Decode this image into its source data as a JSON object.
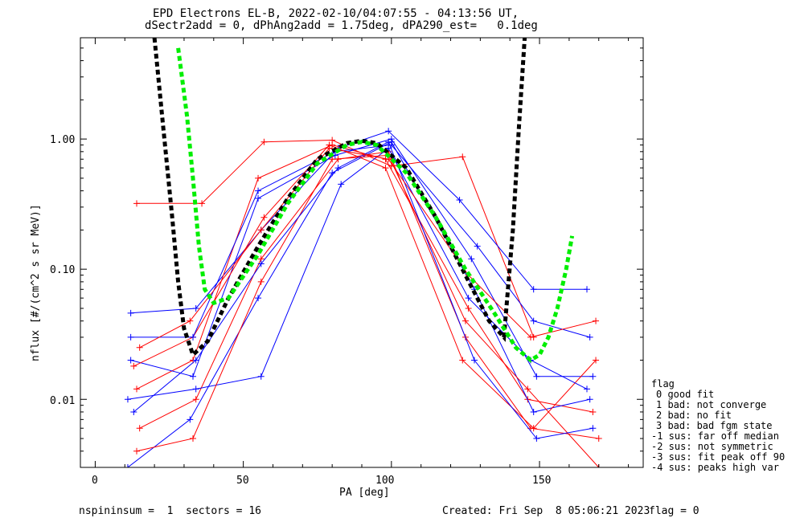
{
  "chart_data": {
    "type": "line",
    "title": "EPD Electrons EL-B, 2022-02-10/04:07:55 - 04:13:56 UT,",
    "subtitle": "dSectr2add = 0, dPhAng2add = 1.75deg, dPA290_est=   0.1deg",
    "xlabel": "PA [deg]",
    "ylabel": "nflux [#/(cm^2 s sr MeV)]",
    "xlim": [
      -5,
      185
    ],
    "ylim": [
      0.003,
      6.0
    ],
    "yscale": "log",
    "x_ticks": [
      0,
      50,
      100,
      150
    ],
    "y_ticks": [
      0.01,
      0.1,
      1.0
    ],
    "y_tick_labels": [
      "0.01",
      "0.10",
      "1.00"
    ],
    "series": [
      {
        "color": "#ff0000",
        "x": [
          14,
          36,
          57,
          80,
          100,
          124,
          148
        ],
        "y": [
          0.32,
          0.32,
          0.95,
          0.98,
          0.62,
          0.73,
          0.03
        ]
      },
      {
        "color": "#0000ff",
        "x": [
          12,
          34,
          56,
          82,
          99,
          123,
          148,
          166
        ],
        "y": [
          0.046,
          0.05,
          0.2,
          0.85,
          1.15,
          0.34,
          0.07,
          0.07
        ]
      },
      {
        "color": "#ff0000",
        "x": [
          14,
          33,
          55,
          80,
          98,
          126,
          146,
          168
        ],
        "y": [
          0.012,
          0.02,
          0.5,
          0.9,
          0.7,
          0.05,
          0.01,
          0.008
        ]
      },
      {
        "color": "#0000ff",
        "x": [
          11,
          32,
          55,
          80,
          100,
          128,
          148,
          167
        ],
        "y": [
          0.003,
          0.007,
          0.06,
          0.55,
          0.95,
          0.07,
          0.008,
          0.01
        ]
      },
      {
        "color": "#ff0000",
        "x": [
          15,
          34,
          56,
          82,
          99,
          125,
          147,
          170
        ],
        "y": [
          0.006,
          0.01,
          0.12,
          0.7,
          0.8,
          0.03,
          0.006,
          0.005
        ]
      },
      {
        "color": "#0000ff",
        "x": [
          12,
          33,
          55,
          81,
          100,
          127,
          149,
          168
        ],
        "y": [
          0.02,
          0.015,
          0.35,
          0.75,
          1.0,
          0.12,
          0.015,
          0.015
        ]
      },
      {
        "color": "#ff0000",
        "x": [
          13,
          33,
          57,
          79,
          98,
          124,
          148,
          169
        ],
        "y": [
          0.018,
          0.03,
          0.25,
          0.9,
          0.6,
          0.02,
          0.006,
          0.02
        ]
      },
      {
        "color": "#0000ff",
        "x": [
          11,
          34,
          56,
          83,
          99,
          126,
          147,
          166
        ],
        "y": [
          0.01,
          0.012,
          0.015,
          0.45,
          0.85,
          0.06,
          0.02,
          0.012
        ]
      },
      {
        "color": "#ff0000",
        "x": [
          14,
          33,
          56,
          80,
          99,
          125,
          146,
          170
        ],
        "y": [
          0.004,
          0.005,
          0.08,
          0.7,
          0.75,
          0.04,
          0.012,
          0.003
        ]
      },
      {
        "color": "#0000ff",
        "x": [
          12,
          33,
          55,
          81,
          100,
          129,
          148,
          167
        ],
        "y": [
          0.03,
          0.03,
          0.4,
          0.8,
          0.9,
          0.15,
          0.04,
          0.03
        ]
      },
      {
        "color": "#0000ff",
        "x": [
          13,
          34,
          56,
          82,
          99,
          128,
          149,
          168
        ],
        "y": [
          0.008,
          0.02,
          0.11,
          0.6,
          0.95,
          0.02,
          0.005,
          0.006
        ]
      },
      {
        "color": "#ff0000",
        "x": [
          15,
          32,
          56,
          79,
          99,
          126,
          147,
          169
        ],
        "y": [
          0.025,
          0.04,
          0.2,
          0.85,
          0.7,
          0.09,
          0.03,
          0.04
        ]
      }
    ],
    "model_curves": [
      {
        "color": "#000000",
        "x": [
          20,
          23,
          26,
          28,
          30,
          33,
          38,
          45,
          55,
          65,
          75,
          85,
          90,
          95,
          105,
          115,
          125,
          133,
          138,
          141,
          143,
          145
        ],
        "y": [
          6.0,
          1.2,
          0.25,
          0.08,
          0.035,
          0.022,
          0.028,
          0.06,
          0.15,
          0.35,
          0.7,
          0.93,
          0.97,
          0.93,
          0.6,
          0.25,
          0.09,
          0.04,
          0.03,
          0.2,
          1.2,
          6.0
        ]
      },
      {
        "color": "#00ee00",
        "x": [
          28,
          31,
          33,
          35,
          37,
          40,
          45,
          55,
          65,
          75,
          85,
          90,
          95,
          105,
          115,
          125,
          135,
          142,
          147,
          150,
          153,
          156,
          159,
          161
        ],
        "y": [
          5.0,
          1.5,
          0.5,
          0.15,
          0.07,
          0.055,
          0.06,
          0.13,
          0.32,
          0.65,
          0.9,
          0.95,
          0.9,
          0.55,
          0.25,
          0.1,
          0.045,
          0.025,
          0.02,
          0.022,
          0.03,
          0.05,
          0.1,
          0.18
        ]
      }
    ],
    "legend": {
      "placement": "right",
      "title": "flag",
      "entries": [
        "0 good fit",
        "1 bad: not converge",
        "2 bad: no fit",
        "3 bad: bad fgm state",
        "-1 sus: far off median",
        "-2 sus: not symmetric",
        "-3 sus: fit peak off 90",
        "-4 sus: peaks high var"
      ]
    }
  },
  "footer": {
    "nspin": "nspininsum =  1  sectors = 16",
    "created": "Created: Fri Sep  8 05:06:21 2023",
    "flag": "flag = 0"
  }
}
